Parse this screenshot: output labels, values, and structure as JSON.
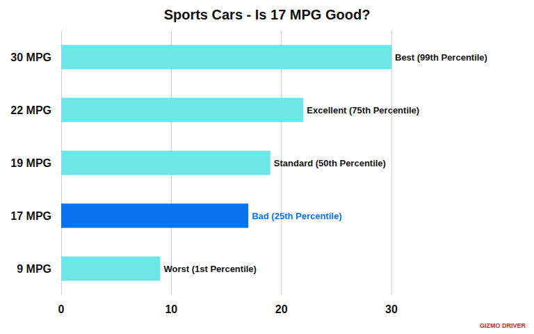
{
  "chart_data": {
    "type": "bar",
    "orientation": "horizontal",
    "title": "Sports Cars - Is 17 MPG Good?",
    "categories": [
      "30 MPG",
      "22 MPG",
      "19 MPG",
      "17 MPG",
      "9 MPG"
    ],
    "values": [
      30,
      22,
      19,
      17,
      9
    ],
    "colors": [
      "#6ee6e8",
      "#6ee6e8",
      "#6ee6e8",
      "#0a72ea",
      "#6ee6e8"
    ],
    "annotations": [
      "Best (99th Percentile)",
      "Excellent (75th Percentile)",
      "Standard (50th Percentile)",
      "Bad (25th Percentile)",
      "Worst (1st Percentile)"
    ],
    "xlim": [
      0,
      30
    ],
    "xticks": [
      0,
      10,
      20,
      30
    ],
    "grid": true,
    "source": "GIZMO DRIVER"
  }
}
